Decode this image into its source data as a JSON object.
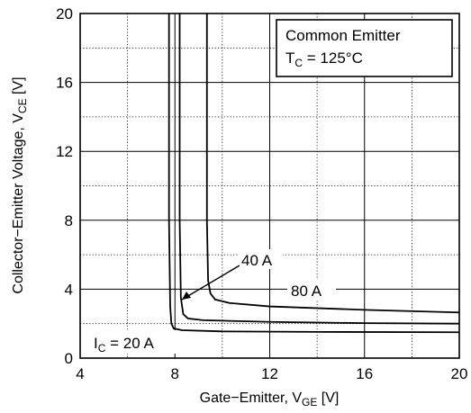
{
  "chart_data": {
    "type": "line",
    "xlabel": {
      "main": "Gate−Emitter, V",
      "sub": "GE",
      "unit": " [V]"
    },
    "ylabel": {
      "main": "Collector−Emitter Voltage, V",
      "sub": "CE",
      "unit": " [V]"
    },
    "xlim": [
      4,
      20
    ],
    "ylim": [
      0,
      20
    ],
    "x_ticks": [
      4,
      8,
      12,
      16,
      20
    ],
    "y_ticks": [
      0,
      4,
      8,
      12,
      16,
      20
    ],
    "grid": {
      "major": true,
      "minor": "dotted",
      "minor_x_step": 2,
      "minor_y_step": 2
    },
    "legend_box": {
      "placement": "top-right",
      "line1": "Common Emitter",
      "line2": {
        "main": "T",
        "sub": "C",
        "rest": " = 125°C"
      }
    },
    "series": [
      {
        "name": "I_C = 20 A",
        "label": {
          "main": "I",
          "sub": "C",
          "rest": " = 20 A"
        },
        "points": [
          [
            7.75,
            20
          ],
          [
            7.75,
            8
          ],
          [
            7.8,
            3
          ],
          [
            7.85,
            2.0
          ],
          [
            7.95,
            1.72
          ],
          [
            8.3,
            1.62
          ],
          [
            10,
            1.55
          ],
          [
            14,
            1.52
          ],
          [
            20,
            1.5
          ]
        ]
      },
      {
        "name": "40 A",
        "label": {
          "main": "40 A",
          "sub": "",
          "rest": ""
        },
        "points": [
          [
            8.2,
            20
          ],
          [
            8.2,
            8
          ],
          [
            8.25,
            3.5
          ],
          [
            8.35,
            2.55
          ],
          [
            8.55,
            2.3
          ],
          [
            9.2,
            2.2
          ],
          [
            12,
            2.1
          ],
          [
            16,
            2.03
          ],
          [
            20,
            2.0
          ]
        ]
      },
      {
        "name": "80 A",
        "label": {
          "main": "80 A",
          "sub": "",
          "rest": ""
        },
        "points": [
          [
            9.35,
            20
          ],
          [
            9.35,
            8
          ],
          [
            9.4,
            4.5
          ],
          [
            9.5,
            3.75
          ],
          [
            9.7,
            3.4
          ],
          [
            10.3,
            3.2
          ],
          [
            12,
            3.0
          ],
          [
            16,
            2.8
          ],
          [
            20,
            2.65
          ]
        ]
      }
    ]
  }
}
